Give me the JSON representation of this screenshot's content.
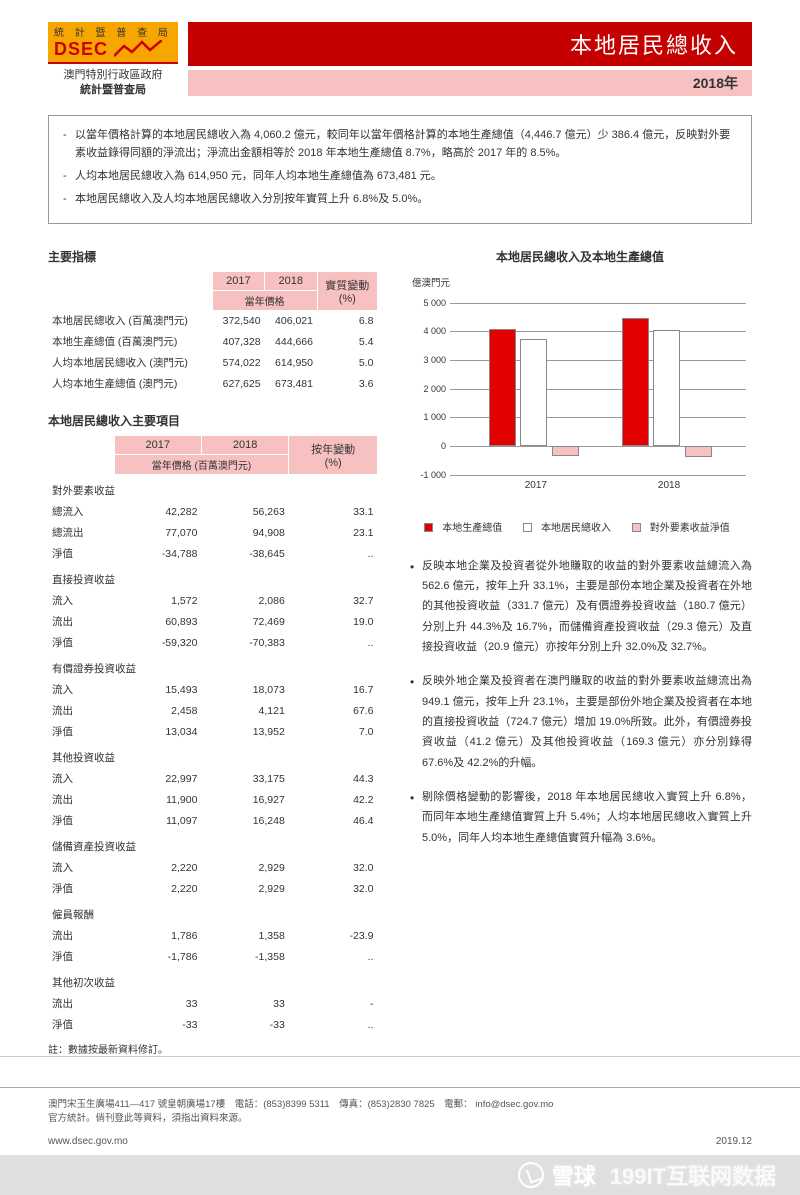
{
  "header": {
    "bureau_label": "統 計 暨 普 查 局",
    "dsec": "DSEC",
    "gov_line1": "澳門特別行政區政府",
    "gov_line2": "統計暨普查局",
    "title": "本地居民總收入",
    "year": "2018年"
  },
  "summary": {
    "b1": "以當年價格計算的本地居民總收入為 4,060.2 億元，較同年以當年價格計算的本地生產總值（4,446.7 億元）少 386.4 億元，反映對外要素收益錄得同額的淨流出；淨流出金額相等於 2018 年本地生產總值 8.7%，略高於 2017 年的 8.5%。",
    "b2": "人均本地居民總收入為 614,950 元，同年人均本地生產總值為 673,481 元。",
    "b3": "本地居民總收入及人均本地居民總收入分別按年實質上升 6.8%及 5.0%。"
  },
  "table1": {
    "title": "主要指標",
    "col_2017": "2017",
    "col_2018": "2018",
    "col_change": "實質變動\n(%)",
    "sub_price": "當年價格",
    "rows": [
      {
        "label": "本地居民總收入 (百萬澳門元)",
        "v1": "372,540",
        "v2": "406,021",
        "c": "6.8"
      },
      {
        "label": "本地生產總值 (百萬澳門元)",
        "v1": "407,328",
        "v2": "444,666",
        "c": "5.4"
      },
      {
        "label": "人均本地居民總收入 (澳門元)",
        "v1": "574,022",
        "v2": "614,950",
        "c": "5.0"
      },
      {
        "label": "人均本地生產總值 (澳門元)",
        "v1": "627,625",
        "v2": "673,481",
        "c": "3.6"
      }
    ]
  },
  "table2": {
    "title": "本地居民總收入主要項目",
    "col_2017": "2017",
    "col_2018": "2018",
    "col_change": "按年變動\n(%)",
    "sub_price": "當年價格 (百萬澳門元)",
    "groups": [
      {
        "head": "對外要素收益",
        "rows": [
          {
            "label": "總流入",
            "v1": "42,282",
            "v2": "56,263",
            "c": "33.1"
          },
          {
            "label": "總流出",
            "v1": "77,070",
            "v2": "94,908",
            "c": "23.1"
          },
          {
            "label": "淨值",
            "v1": "-34,788",
            "v2": "-38,645",
            "c": ".."
          }
        ]
      },
      {
        "head": "直接投資收益",
        "rows": [
          {
            "label": "流入",
            "v1": "1,572",
            "v2": "2,086",
            "c": "32.7"
          },
          {
            "label": "流出",
            "v1": "60,893",
            "v2": "72,469",
            "c": "19.0"
          },
          {
            "label": "淨值",
            "v1": "-59,320",
            "v2": "-70,383",
            "c": ".."
          }
        ]
      },
      {
        "head": "有價證券投資收益",
        "rows": [
          {
            "label": "流入",
            "v1": "15,493",
            "v2": "18,073",
            "c": "16.7"
          },
          {
            "label": "流出",
            "v1": "2,458",
            "v2": "4,121",
            "c": "67.6"
          },
          {
            "label": "淨值",
            "v1": "13,034",
            "v2": "13,952",
            "c": "7.0"
          }
        ]
      },
      {
        "head": "其他投資收益",
        "rows": [
          {
            "label": "流入",
            "v1": "22,997",
            "v2": "33,175",
            "c": "44.3"
          },
          {
            "label": "流出",
            "v1": "11,900",
            "v2": "16,927",
            "c": "42.2"
          },
          {
            "label": "淨值",
            "v1": "11,097",
            "v2": "16,248",
            "c": "46.4"
          }
        ]
      },
      {
        "head": "儲備資產投資收益",
        "rows": [
          {
            "label": "流入",
            "v1": "2,220",
            "v2": "2,929",
            "c": "32.0"
          },
          {
            "label": "淨值",
            "v1": "2,220",
            "v2": "2,929",
            "c": "32.0"
          }
        ]
      },
      {
        "head": "僱員報酬",
        "rows": [
          {
            "label": "流出",
            "v1": "1,786",
            "v2": "1,358",
            "c": "-23.9"
          },
          {
            "label": "淨值",
            "v1": "-1,786",
            "v2": "-1,358",
            "c": ".."
          }
        ]
      },
      {
        "head": "其他初次收益",
        "rows": [
          {
            "label": "流出",
            "v1": "33",
            "v2": "33",
            "c": "-"
          },
          {
            "label": "淨值",
            "v1": "-33",
            "v2": "-33",
            "c": ".."
          }
        ]
      }
    ],
    "note": "註：數據按最新資料修訂。"
  },
  "chart": {
    "title": "本地居民總收入及本地生產總值",
    "y_unit": "億澳門元",
    "y_ticks": [
      "5 000",
      "4 000",
      "3 000",
      "2 000",
      "1 000",
      "0",
      "-1 000"
    ],
    "y_min": -1000,
    "y_max": 5000,
    "groups": [
      {
        "x": "2017",
        "gdp": 4073,
        "gni": 3725,
        "net": -348
      },
      {
        "x": "2018",
        "gdp": 4447,
        "gni": 4060,
        "net": -386
      }
    ],
    "colors": {
      "gdp": "#e30000",
      "gni": "#ffffff",
      "net": "#f8c1c1",
      "border": "#888888",
      "grid": "#999999"
    },
    "legend": {
      "l1": "本地生產總值",
      "l2": "本地居民總收入",
      "l3": "對外要素收益淨值"
    }
  },
  "bullets": {
    "p1": "反映本地企業及投資者從外地賺取的收益的對外要素收益總流入為 562.6 億元，按年上升 33.1%，主要是部份本地企業及投資者在外地的其他投資收益（331.7 億元）及有價證券投資收益（180.7 億元）分別上升 44.3%及 16.7%，而儲備資產投資收益（29.3 億元）及直接投資收益（20.9 億元）亦按年分別上升 32.0%及 32.7%。",
    "p2": "反映外地企業及投資者在澳門賺取的收益的對外要素收益總流出為 949.1 億元，按年上升 23.1%，主要是部份外地企業及投資者在本地的直接投資收益（724.7 億元）增加 19.0%所致。此外，有價證券投資收益（41.2 億元）及其他投資收益（169.3 億元）亦分別錄得 67.6%及 42.2%的升幅。",
    "p3": "剔除價格變動的影響後，2018 年本地居民總收入實質上升 6.8%，而同年本地生產總值實質上升 5.4%；人均本地居民總收入實質上升 5.0%，同年人均本地生產總值實質升幅為 3.6%。"
  },
  "footer": {
    "addr": "澳門宋玉生廣場411—417 號皇朝廣場17樓　電話：(853)8399 5311　傳真：(853)2830 7825　電郵： info@dsec.gov.mo",
    "addr2": "官方統計。倘刊登此等資料，須指出資料來源。",
    "url": "www.dsec.gov.mo",
    "date": "2019.12"
  },
  "watermark": {
    "brand": "雪球",
    "source": "199IT互联网数据"
  }
}
